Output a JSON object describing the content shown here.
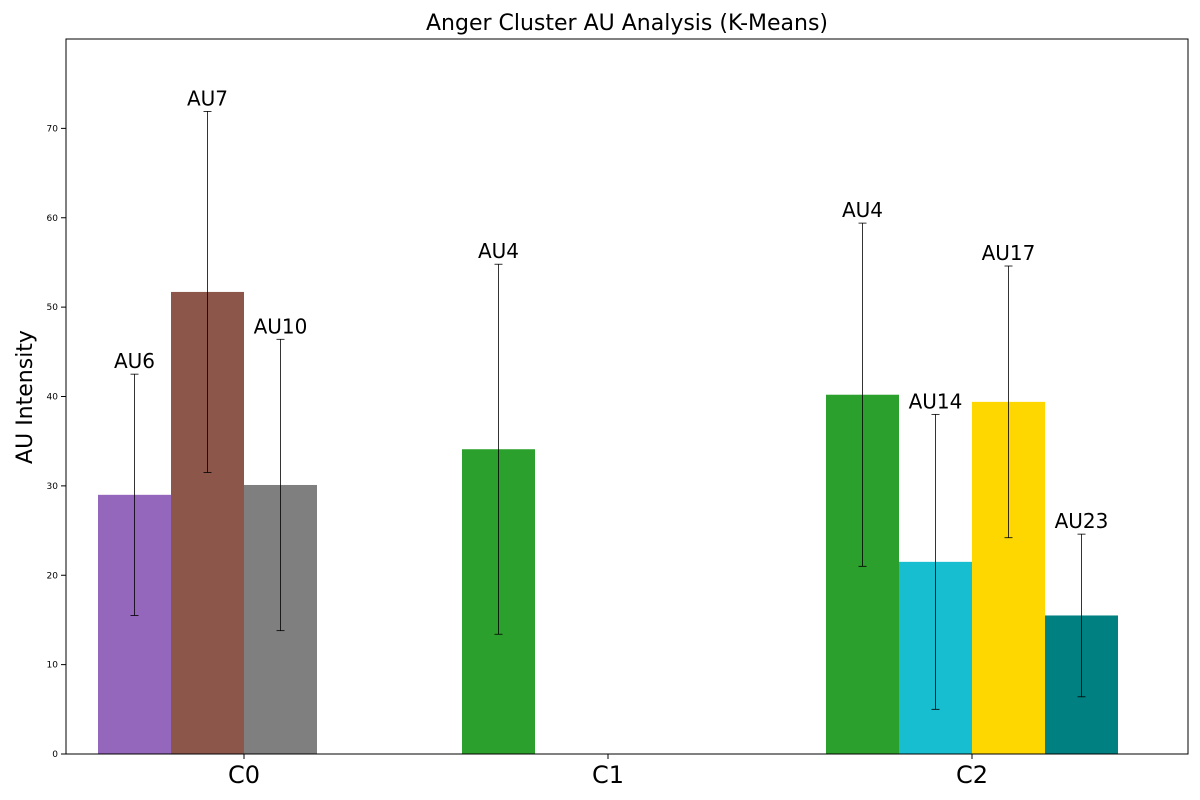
{
  "chart_data": {
    "type": "bar",
    "title": "Anger Cluster AU Analysis (K-Means)",
    "xlabel": "",
    "ylabel": "AU Intensity",
    "ylim": [
      0,
      80
    ],
    "yticks": [
      0,
      10,
      20,
      30,
      40,
      50,
      60,
      70
    ],
    "grid": false,
    "legend": "none",
    "categories": [
      "C0",
      "C1",
      "C2"
    ],
    "groups": [
      {
        "category": "C0",
        "bars": [
          {
            "label": "AU6",
            "value": 29.0,
            "err": 13.5,
            "color": "#9467bd"
          },
          {
            "label": "AU7",
            "value": 51.7,
            "err": 20.2,
            "color": "#8c564b"
          },
          {
            "label": "AU10",
            "value": 30.1,
            "err": 16.3,
            "color": "#7f7f7f"
          }
        ]
      },
      {
        "category": "C1",
        "bars": [
          {
            "label": "AU4",
            "value": 34.1,
            "err": 20.7,
            "color": "#2ca02c"
          }
        ]
      },
      {
        "category": "C2",
        "bars": [
          {
            "label": "AU4",
            "value": 40.2,
            "err": 19.2,
            "color": "#2ca02c"
          },
          {
            "label": "AU14",
            "value": 21.5,
            "err": 16.5,
            "color": "#17becf"
          },
          {
            "label": "AU17",
            "value": 39.4,
            "err": 15.2,
            "color": "#ffd700"
          },
          {
            "label": "AU23",
            "value": 15.5,
            "err": 9.1,
            "color": "#008080"
          }
        ]
      }
    ]
  }
}
